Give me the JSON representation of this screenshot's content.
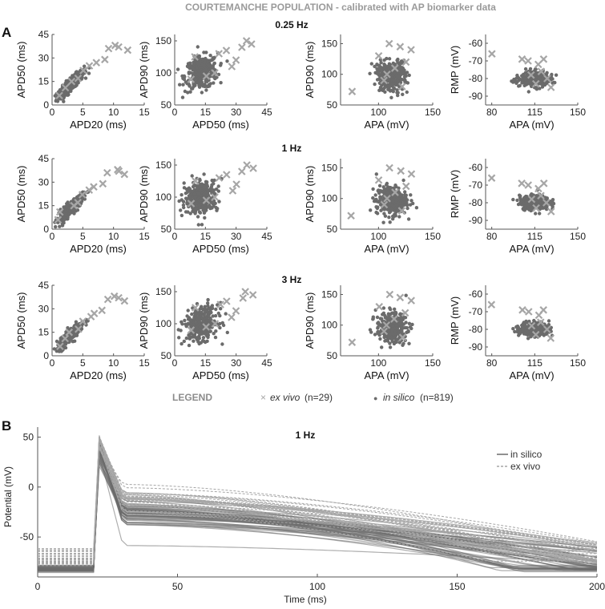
{
  "figure": {
    "title": "COURTEMANCHE POPULATION - calibrated with AP biomarker data",
    "panel_a_label": "A",
    "panel_b_label": "B"
  },
  "colors": {
    "ex_vivo": "#a6a6a6",
    "in_silico": "#6b6b6b",
    "axis": "#555555"
  },
  "legend": {
    "heading": "LEGEND",
    "ex_vivo_marker": "×",
    "ex_vivo_label": "ex vivo",
    "ex_vivo_count": "(n=29)",
    "in_silico_marker": "●",
    "in_silico_label": "in silico",
    "in_silico_count": "(n=819)"
  },
  "chart_data": [
    {
      "type": "scatter",
      "id": "scatter-grid",
      "rows": [
        "0.25 Hz",
        "1 Hz",
        "3 Hz"
      ],
      "panels": [
        {
          "xlabel": "APD20 (ms)",
          "ylabel": "APD50 (ms)",
          "xlim": [
            0,
            15
          ],
          "ylim": [
            0,
            45
          ],
          "xticks": [
            0,
            5,
            10,
            15
          ],
          "yticks": [
            0,
            15,
            30,
            45
          ],
          "in_silico": {
            "cx": 3.0,
            "cy": 13,
            "sx": 1.1,
            "sy": 4.5,
            "corr": 0.9
          },
          "ex_vivo": {
            "cx": [
              [
                1,
                6
              ],
              [
                2,
                11
              ],
              [
                3,
                15
              ],
              [
                4,
                17
              ],
              [
                5,
                22
              ],
              [
                8,
                29
              ],
              [
                9,
                36
              ],
              [
                10,
                38
              ],
              [
                11,
                37
              ],
              [
                12,
                35
              ],
              [
                6,
                25
              ],
              [
                7,
                27
              ]
            ]
          }
        },
        {
          "xlabel": "APD50 (ms)",
          "ylabel": "APD90 (ms)",
          "xlim": [
            0,
            45
          ],
          "ylim": [
            50,
            160
          ],
          "xticks": [
            0,
            15,
            30,
            45
          ],
          "yticks": [
            50,
            100,
            150
          ],
          "in_silico": {
            "cx": 13,
            "cy": 100,
            "sx": 4,
            "sy": 13,
            "corr": 0.2
          },
          "ex_vivo": {
            "cx": [
              [
                10,
                125
              ],
              [
                25,
                135
              ],
              [
                30,
                120
              ],
              [
                35,
                150
              ],
              [
                20,
                100
              ],
              [
                38,
                145
              ],
              [
                15,
                95
              ],
              [
                28,
                110
              ],
              [
                8,
                90
              ],
              [
                22,
                130
              ],
              [
                33,
                140
              ]
            ]
          }
        },
        {
          "xlabel": "APA (mV)",
          "ylabel": "APD90 (ms)",
          "xlim": [
            65,
            150
          ],
          "ylim": [
            50,
            165
          ],
          "xticks": [
            100,
            150
          ],
          "yticks": [
            50,
            100,
            150
          ],
          "in_silico": {
            "cx": 112,
            "cy": 97,
            "sx": 7,
            "sy": 12,
            "corr": 0.0
          },
          "ex_vivo": {
            "cx": [
              [
                75,
                72
              ],
              [
                100,
                130
              ],
              [
                110,
                150
              ],
              [
                120,
                145
              ],
              [
                125,
                120
              ],
              [
                130,
                140
              ],
              [
                105,
                90
              ],
              [
                115,
                110
              ],
              [
                122,
                80
              ],
              [
                108,
                100
              ]
            ]
          }
        },
        {
          "xlabel": "APA (mV)",
          "ylabel": "RMP (mV)",
          "xlim": [
            75,
            150
          ],
          "ylim": [
            -95,
            -55
          ],
          "xticks": [
            80,
            115,
            150
          ],
          "yticks": [
            -60,
            -70,
            -80,
            -90
          ],
          "in_silico": {
            "cx": 115,
            "cy": -80,
            "sx": 6,
            "sy": 2,
            "corr": 0.0
          },
          "ex_vivo": {
            "cx": [
              [
                80,
                -66
              ],
              [
                105,
                -69
              ],
              [
                110,
                -70
              ],
              [
                118,
                -72
              ],
              [
                122,
                -69
              ],
              [
                128,
                -85
              ],
              [
                112,
                -78
              ],
              [
                116,
                -83
              ],
              [
                120,
                -76
              ],
              [
                125,
                -80
              ]
            ]
          }
        }
      ]
    },
    {
      "type": "line",
      "id": "ap-traces",
      "title": "1 Hz",
      "xlabel": "Time (ms)",
      "ylabel": "Potential (mV)",
      "xlim": [
        0,
        200
      ],
      "ylim": [
        -90,
        60
      ],
      "xticks": [
        0,
        50,
        100,
        150,
        200
      ],
      "yticks": [
        50,
        0,
        -50
      ],
      "series": [
        {
          "name": "in silico",
          "rest": -82,
          "peak": 40,
          "plateau": -25,
          "repol_end": 100
        },
        {
          "name": "ex vivo",
          "rest": -70,
          "peak": 55,
          "plateau": -15,
          "repol_end": 200
        }
      ]
    }
  ]
}
